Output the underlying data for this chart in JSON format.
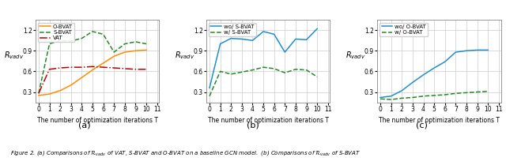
{
  "x": [
    0,
    1,
    2,
    3,
    4,
    5,
    6,
    7,
    8,
    9,
    10
  ],
  "subplot_a": {
    "O_BVAT": [
      0.25,
      0.27,
      0.32,
      0.4,
      0.51,
      0.62,
      0.72,
      0.82,
      0.88,
      0.9,
      0.91
    ],
    "S_BVAT": [
      0.28,
      1.0,
      1.05,
      1.04,
      1.08,
      1.18,
      1.14,
      0.88,
      1.0,
      1.03,
      1.0
    ],
    "VAT": [
      0.28,
      0.63,
      0.65,
      0.66,
      0.66,
      0.67,
      0.66,
      0.65,
      0.64,
      0.63,
      0.63
    ],
    "sublabel": "(a)"
  },
  "subplot_b": {
    "wo_S_BVAT": [
      0.36,
      1.0,
      1.08,
      1.07,
      1.05,
      1.18,
      1.14,
      0.88,
      1.07,
      1.06,
      1.22
    ],
    "w_S_BVAT": [
      0.24,
      0.6,
      0.56,
      0.59,
      0.62,
      0.66,
      0.64,
      0.58,
      0.63,
      0.62,
      0.52
    ],
    "sublabel": "(b)"
  },
  "subplot_c": {
    "wo_O_BVAT": [
      0.22,
      0.24,
      0.32,
      0.44,
      0.55,
      0.65,
      0.74,
      0.88,
      0.9,
      0.91,
      0.91
    ],
    "w_O_BVAT": [
      0.2,
      0.19,
      0.21,
      0.22,
      0.24,
      0.25,
      0.26,
      0.28,
      0.29,
      0.3,
      0.31
    ],
    "sublabel": "(c)"
  },
  "xlabel": "The number of optimization iterations T",
  "ylabel": "$R_{vadv}$",
  "xlim": [
    -0.3,
    11.2
  ],
  "ylim": [
    0.15,
    1.35
  ],
  "yticks": [
    0.3,
    0.6,
    0.9,
    1.2
  ],
  "xticks": [
    0,
    1,
    2,
    3,
    4,
    5,
    6,
    7,
    8,
    9,
    10,
    11
  ],
  "color_orange": "#FF8C00",
  "color_green_dashed": "#228B22",
  "color_red_dashdot": "#C00000",
  "color_blue_solid": "#1E8FCC",
  "caption": "Figure 2. (a) Comparisons of $\\mathcal{R}_{vadv}$ of VAT, S-BVAT and O-BVAT on a baseline GCN model.  (b) Comparisons of $\\mathcal{R}_{vadv}$ of S-BVAT"
}
